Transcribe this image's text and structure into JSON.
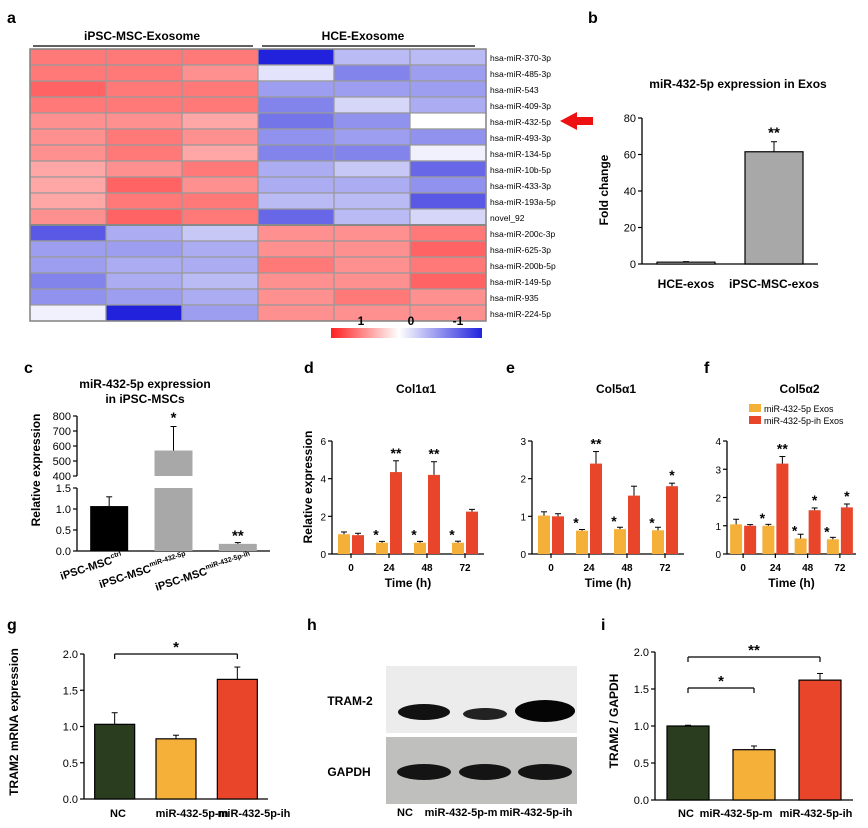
{
  "panels": {
    "a": "a",
    "b": "b",
    "c": "c",
    "d": "d",
    "e": "e",
    "f": "f",
    "g": "g",
    "h": "h",
    "i": "i"
  },
  "colors": {
    "high": "#ff2020",
    "mid": "#ffffff",
    "low": "#2222dd",
    "orange": "#f5b03a",
    "red": "#e8452a",
    "darkgreen": "#2a3d1f",
    "gray": "#a8a8a8",
    "black": "#000000",
    "arrow": "#ee1111"
  },
  "chart_data": [
    {
      "id": "a",
      "type": "heatmap",
      "group_labels": [
        "iPSC-MSC-Exosome",
        "HCE-Exosome"
      ],
      "rows": [
        "hsa-miR-370-3p",
        "hsa-miR-485-3p",
        "hsa-miR-543",
        "hsa-miR-409-3p",
        "hsa-miR-432-5p",
        "hsa-miR-493-3p",
        "hsa-miR-134-5p",
        "hsa-miR-10b-5p",
        "hsa-miR-433-3p",
        "hsa-miR-193a-5p",
        "novel_92",
        "hsa-miR-200c-3p",
        "hsa-miR-625-3p",
        "hsa-miR-200b-5p",
        "hsa-miR-149-5p",
        "hsa-miR-935",
        "hsa-miR-224-5p"
      ],
      "values": [
        [
          0.6,
          0.6,
          0.6,
          -1.6,
          -0.5,
          -0.5
        ],
        [
          0.6,
          0.6,
          0.5,
          -0.2,
          -0.9,
          -0.7
        ],
        [
          0.7,
          0.6,
          0.6,
          -0.7,
          -0.7,
          -0.7
        ],
        [
          0.6,
          0.6,
          0.6,
          -0.9,
          -0.3,
          -0.6
        ],
        [
          0.5,
          0.5,
          0.4,
          -1.0,
          -0.8,
          0.0
        ],
        [
          0.5,
          0.6,
          0.5,
          -0.8,
          -0.7,
          -0.8
        ],
        [
          0.5,
          0.6,
          0.4,
          -0.9,
          -0.9,
          -0.1
        ],
        [
          0.4,
          0.5,
          0.6,
          -0.6,
          -0.4,
          -1.1
        ],
        [
          0.4,
          0.7,
          0.5,
          -0.6,
          -0.6,
          -0.8
        ],
        [
          0.4,
          0.6,
          0.6,
          -0.5,
          -0.5,
          -1.2
        ],
        [
          0.5,
          0.7,
          0.6,
          -1.1,
          -0.5,
          -0.3
        ],
        [
          -1.2,
          -0.6,
          -0.4,
          0.5,
          0.5,
          0.6
        ],
        [
          -0.7,
          -0.7,
          -0.6,
          0.5,
          0.5,
          0.7
        ],
        [
          -0.7,
          -0.6,
          -0.6,
          0.6,
          0.5,
          0.6
        ],
        [
          -0.9,
          -0.6,
          -0.5,
          0.5,
          0.5,
          0.7
        ],
        [
          -0.8,
          -0.7,
          -0.6,
          0.5,
          0.6,
          0.5
        ],
        [
          -0.1,
          -1.6,
          -0.7,
          0.5,
          0.5,
          0.5
        ]
      ],
      "highlight_row": "hsa-miR-432-5p",
      "legend_ticks": [
        "1",
        "0",
        "-1"
      ],
      "range": [
        -1.6,
        1
      ]
    },
    {
      "id": "b",
      "type": "bar",
      "title": "miR-432-5p expression in Exos",
      "ylabel": "Fold change",
      "categories": [
        "HCE-exos",
        "iPSC-MSC-exos"
      ],
      "values": [
        1,
        61.5
      ],
      "errors": [
        0.3,
        5.5
      ],
      "sig": [
        "",
        "**"
      ],
      "ylim": [
        0,
        80
      ],
      "yticks": [
        0,
        20,
        40,
        60,
        80
      ]
    },
    {
      "id": "c",
      "type": "bar",
      "title_line1": "miR-432-5p expression",
      "title_line2": "in iPSC-MSCs",
      "ylabel": "Relative expression",
      "categories": [
        {
          "base": "iPSC-MSC",
          "sup": "ctrl"
        },
        {
          "base": "iPSC-MSC",
          "sup": "miR-432-5p"
        },
        {
          "base": "iPSC-MSC",
          "sup": "miR-432-5p-ih"
        }
      ],
      "values": [
        1.07,
        570,
        0.17
      ],
      "errors": [
        0.22,
        160,
        0.03
      ],
      "sig": [
        "",
        "*",
        "**"
      ],
      "axis_break": {
        "lower": [
          0,
          1.5
        ],
        "upper": [
          400,
          800
        ]
      },
      "yticks_lower": [
        "0.0",
        "0.5",
        "1.0",
        "1.5"
      ],
      "yticks_upper": [
        "400",
        "500",
        "600",
        "700",
        "800"
      ]
    },
    {
      "id": "d",
      "type": "bar",
      "title": "Col1α1",
      "ylabel": "Relative expression",
      "xlabel": "Time (h)",
      "categories": [
        "0",
        "24",
        "48",
        "72"
      ],
      "ylim": [
        0,
        6
      ],
      "yticks": [
        0,
        2,
        4,
        6
      ],
      "series": [
        {
          "name": "miR-432-5p Exos",
          "values": [
            1.05,
            0.6,
            0.6,
            0.6
          ],
          "errors": [
            0.12,
            0.07,
            0.07,
            0.08
          ],
          "sig": [
            "",
            "*",
            "*",
            "*"
          ]
        },
        {
          "name": "miR-432-5p-ih Exos",
          "values": [
            1.0,
            4.35,
            4.2,
            2.25
          ],
          "errors": [
            0.1,
            0.6,
            0.7,
            0.12
          ],
          "sig": [
            "",
            "**",
            "**",
            ""
          ]
        }
      ]
    },
    {
      "id": "e",
      "type": "bar",
      "title": "Col5α1",
      "xlabel": "Time (h)",
      "categories": [
        "0",
        "24",
        "48",
        "72"
      ],
      "ylim": [
        0,
        3
      ],
      "yticks": [
        0,
        1,
        2,
        3
      ],
      "series": [
        {
          "name": "miR-432-5p Exos",
          "values": [
            1.02,
            0.62,
            0.66,
            0.63
          ],
          "errors": [
            0.1,
            0.03,
            0.05,
            0.08
          ],
          "sig": [
            "",
            "*",
            "*",
            "*"
          ]
        },
        {
          "name": "miR-432-5p-ih Exos",
          "values": [
            1.0,
            2.4,
            1.55,
            1.8
          ],
          "errors": [
            0.07,
            0.32,
            0.25,
            0.08
          ],
          "sig": [
            "",
            "**",
            "",
            "*"
          ]
        }
      ]
    },
    {
      "id": "f",
      "type": "bar",
      "title": "Col5α2",
      "xlabel": "Time (h)",
      "categories": [
        "0",
        "24",
        "48",
        "72"
      ],
      "ylim": [
        0,
        4
      ],
      "yticks": [
        0,
        1,
        2,
        3,
        4
      ],
      "legend": [
        "miR-432-5p Exos",
        "miR-432-5p-ih Exos"
      ],
      "series": [
        {
          "name": "miR-432-5p Exos",
          "values": [
            1.05,
            1.0,
            0.55,
            0.52
          ],
          "errors": [
            0.18,
            0.05,
            0.15,
            0.07
          ],
          "sig": [
            "",
            "*",
            "*",
            "*"
          ]
        },
        {
          "name": "miR-432-5p-ih Exos",
          "values": [
            1.0,
            3.2,
            1.55,
            1.65
          ],
          "errors": [
            0.04,
            0.25,
            0.08,
            0.12
          ],
          "sig": [
            "",
            "**",
            "*",
            "*"
          ]
        }
      ]
    },
    {
      "id": "g",
      "type": "bar",
      "ylabel": "TRAM2 mRNA expression",
      "categories": [
        "NC",
        "miR-432-5p-m",
        "miR-432-5p-ih"
      ],
      "values": [
        1.03,
        0.83,
        1.65
      ],
      "errors": [
        0.16,
        0.05,
        0.17
      ],
      "ylim": [
        0,
        2
      ],
      "yticks": [
        "0.0",
        "0.5",
        "1.0",
        "1.5",
        "2.0"
      ],
      "brackets": [
        {
          "from": 0,
          "to": 2,
          "label": "*"
        }
      ]
    },
    {
      "id": "h",
      "type": "blot",
      "labels": [
        "TRAM-2",
        "GAPDH"
      ],
      "lanes": [
        "NC",
        "miR-432-5p-m",
        "miR-432-5p-ih"
      ]
    },
    {
      "id": "i",
      "type": "bar",
      "ylabel": "TRAM2 / GAPDH",
      "categories": [
        "NC",
        "miR-432-5p-m",
        "miR-432-5p-ih"
      ],
      "values": [
        1.0,
        0.68,
        1.62
      ],
      "errors": [
        0.01,
        0.05,
        0.09
      ],
      "ylim": [
        0,
        2
      ],
      "yticks": [
        "0.0",
        "0.5",
        "1.0",
        "1.5",
        "2.0"
      ],
      "brackets": [
        {
          "from": 0,
          "to": 1,
          "label": "*"
        },
        {
          "from": 0,
          "to": 2,
          "label": "**"
        }
      ]
    }
  ]
}
